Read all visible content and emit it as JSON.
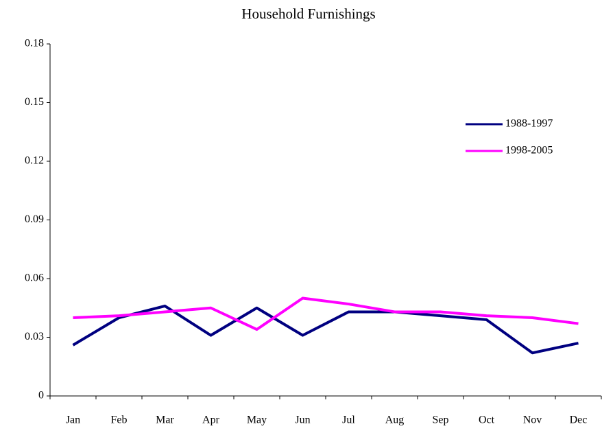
{
  "chart_data": {
    "type": "line",
    "title": "Household Furnishings",
    "categories": [
      "Jan",
      "Feb",
      "Mar",
      "Apr",
      "May",
      "Jun",
      "Jul",
      "Aug",
      "Sep",
      "Oct",
      "Nov",
      "Dec"
    ],
    "series": [
      {
        "name": "1988-1997",
        "color": "#000080",
        "values": [
          0.026,
          0.04,
          0.046,
          0.031,
          0.045,
          0.031,
          0.043,
          0.043,
          0.041,
          0.039,
          0.022,
          0.027
        ]
      },
      {
        "name": "1998-2005",
        "color": "#ff00ff",
        "values": [
          0.04,
          0.041,
          0.043,
          0.045,
          0.034,
          0.05,
          0.047,
          0.043,
          0.043,
          0.041,
          0.04,
          0.037
        ]
      }
    ],
    "ylim": [
      0,
      0.18
    ],
    "yticks": [
      0,
      0.03,
      0.06,
      0.09,
      0.12,
      0.15,
      0.18
    ],
    "grid": false,
    "legend": "upper right"
  }
}
